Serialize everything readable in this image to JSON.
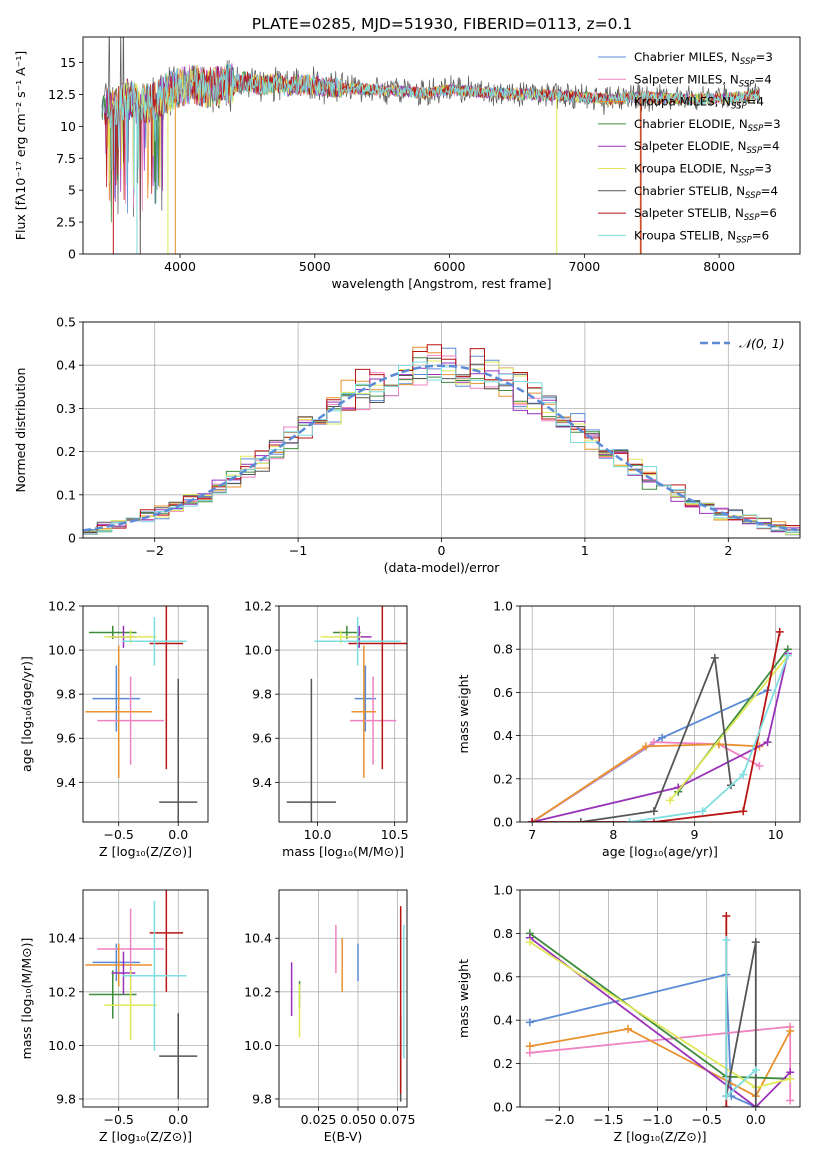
{
  "figure_title": "PLATE=0285, MJD=51930, FIBERID=0113, z=0.1",
  "chart_data": [
    {
      "id": "spectrum",
      "type": "line",
      "xlabel": "wavelength [Angstrom, rest frame]",
      "ylabel": "Flux [fλ10⁻¹⁷ erg cm⁻² s⁻¹ A⁻¹]",
      "xlim": [
        3280,
        8600
      ],
      "ylim": [
        0,
        17
      ],
      "xticks": [
        4000,
        5000,
        6000,
        7000,
        8000
      ],
      "yticks": [
        0.0,
        2.5,
        5.0,
        7.5,
        10.0,
        12.5,
        15.0
      ],
      "legend_loc": "right",
      "series": [
        {
          "name": "Chabrier MILES, N",
          "sub": "SSP",
          "suffix": "=3",
          "color": "#5b8bd6"
        },
        {
          "name": "Salpeter MILES, N",
          "sub": "SSP",
          "suffix": "=4",
          "color": "#f082c2"
        },
        {
          "name": "Kroupa MILES, N",
          "sub": "SSP",
          "suffix": "=4",
          "color": "#e8912e"
        },
        {
          "name": "Chabrier ELODIE, N",
          "sub": "SSP",
          "suffix": "=3",
          "color": "#3d8c3d"
        },
        {
          "name": "Salpeter ELODIE, N",
          "sub": "SSP",
          "suffix": "=4",
          "color": "#9932b8"
        },
        {
          "name": "Kroupa ELODIE, N",
          "sub": "SSP",
          "suffix": "=3",
          "color": "#e0e85a"
        },
        {
          "name": "Chabrier STELIB, N",
          "sub": "SSP",
          "suffix": "=4",
          "color": "#555555"
        },
        {
          "name": "Salpeter STELIB, N",
          "sub": "SSP",
          "suffix": "=6",
          "color": "#b81414"
        },
        {
          "name": "Kroupa STELIB, N",
          "sub": "SSP",
          "suffix": "=6",
          "color": "#7fdde0"
        }
      ],
      "profile_x": [
        3400,
        3500,
        3600,
        3700,
        3800,
        3900,
        4000,
        4100,
        4200,
        4300,
        4400,
        4500,
        4600,
        4700,
        4800,
        4900,
        5000,
        5200,
        5400,
        5600,
        5800,
        6000,
        6200,
        6400,
        6600,
        6800,
        7000,
        7200,
        7400,
        7600,
        7800,
        8000,
        8200,
        8300
      ],
      "profile_y": [
        11.8,
        11.3,
        12.2,
        11.6,
        11.9,
        12.6,
        13.1,
        13.3,
        13.0,
        13.2,
        13.4,
        13.5,
        13.2,
        13.4,
        13.1,
        13.3,
        13.2,
        13.0,
        12.9,
        12.8,
        12.6,
        12.9,
        12.7,
        12.6,
        12.5,
        12.4,
        12.3,
        12.1,
        12.3,
        12.2,
        12.1,
        12.2,
        12.3,
        12.5
      ]
    },
    {
      "id": "residual_histogram",
      "type": "line",
      "xlabel": "(data-model)/error",
      "ylabel": "Normed distribution",
      "xlim": [
        -2.5,
        2.5
      ],
      "ylim": [
        0,
        0.5
      ],
      "xticks": [
        -2,
        -1,
        0,
        1,
        2
      ],
      "yticks": [
        0.0,
        0.1,
        0.2,
        0.3,
        0.4,
        0.5
      ],
      "legend": "𝒩(0, 1)",
      "legend_loc": "top-right",
      "gaussian": {
        "mean": 0,
        "sigma": 1,
        "color": "#5b8bd6"
      },
      "bin_width": 0.1
    },
    {
      "id": "age_vs_Z",
      "type": "scatter",
      "xlabel": "Z [log₁₀(Z/Z⊙)]",
      "ylabel": "age  [log₁₀(age/yr)]",
      "xlim": [
        -0.8,
        0.25
      ],
      "ylim": [
        9.22,
        10.2
      ],
      "xticks": [
        "-0.5",
        "0.0"
      ],
      "yticks": [
        "9.4",
        "9.6",
        "9.8",
        "10.0",
        "10.2"
      ],
      "points": [
        {
          "x": -0.52,
          "y": 9.78,
          "xerr": 0.2,
          "yerr": 0.15,
          "color": "#5b8bd6"
        },
        {
          "x": -0.4,
          "y": 9.68,
          "xerr": 0.28,
          "yerr": 0.2,
          "color": "#f082c2"
        },
        {
          "x": -0.5,
          "y": 9.72,
          "xerr": 0.28,
          "yerr": 0.3,
          "color": "#e8912e"
        },
        {
          "x": -0.55,
          "y": 10.08,
          "xerr": 0.2,
          "yerr": 0.03,
          "color": "#3d8c3d"
        },
        {
          "x": -0.46,
          "y": 10.06,
          "xerr": 0.1,
          "yerr": 0.05,
          "color": "#9932b8"
        },
        {
          "x": -0.4,
          "y": 10.06,
          "xerr": 0.22,
          "yerr": 0.03,
          "color": "#e0e85a"
        },
        {
          "x": 0.0,
          "y": 9.31,
          "xerr": 0.16,
          "yerr": 0.56,
          "color": "#555555"
        },
        {
          "x": -0.1,
          "y": 10.03,
          "xerr": 0.14,
          "yerr": 0.57,
          "color": "#b81414"
        },
        {
          "x": -0.2,
          "y": 10.04,
          "xerr": 0.27,
          "yerr": 0.11,
          "color": "#7fdde0"
        }
      ]
    },
    {
      "id": "age_vs_mass",
      "type": "scatter",
      "xlabel": "mass [log₁₀(M/M⊙)]",
      "ylabel": "",
      "xlim": [
        9.75,
        10.58
      ],
      "ylim": [
        9.22,
        10.2
      ],
      "xticks": [
        "10.0",
        "10.5"
      ],
      "yticks": [
        "9.4",
        "9.6",
        "9.8",
        "10.0",
        "10.2"
      ],
      "points": [
        {
          "x": 10.31,
          "y": 9.78,
          "xerr": 0.07,
          "yerr": 0.15,
          "color": "#5b8bd6"
        },
        {
          "x": 10.36,
          "y": 9.68,
          "xerr": 0.15,
          "yerr": 0.2,
          "color": "#f082c2"
        },
        {
          "x": 10.3,
          "y": 9.72,
          "xerr": 0.08,
          "yerr": 0.3,
          "color": "#e8912e"
        },
        {
          "x": 10.19,
          "y": 10.08,
          "xerr": 0.09,
          "yerr": 0.03,
          "color": "#3d8c3d"
        },
        {
          "x": 10.27,
          "y": 10.06,
          "xerr": 0.08,
          "yerr": 0.05,
          "color": "#9932b8"
        },
        {
          "x": 10.15,
          "y": 10.06,
          "xerr": 0.13,
          "yerr": 0.03,
          "color": "#e0e85a"
        },
        {
          "x": 9.96,
          "y": 9.31,
          "xerr": 0.16,
          "yerr": 0.56,
          "color": "#555555"
        },
        {
          "x": 10.42,
          "y": 10.03,
          "xerr": 0.22,
          "yerr": 0.57,
          "color": "#b81414"
        },
        {
          "x": 10.26,
          "y": 10.04,
          "xerr": 0.28,
          "yerr": 0.11,
          "color": "#7fdde0"
        }
      ]
    },
    {
      "id": "weight_vs_age",
      "type": "line",
      "xlabel": "age  [log₁₀(age/yr)]",
      "ylabel": "mass weight",
      "xlim": [
        6.85,
        10.3
      ],
      "ylim": [
        0,
        1.0
      ],
      "xticks": [
        "7",
        "8",
        "9",
        "10"
      ],
      "yticks": [
        "0.0",
        "0.2",
        "0.4",
        "0.6",
        "0.8",
        "1.0"
      ],
      "series": [
        {
          "color": "#5b8bd6",
          "x": [
            7.0,
            8.6,
            9.9
          ],
          "y": [
            0.0,
            0.39,
            0.61
          ]
        },
        {
          "color": "#f082c2",
          "x": [
            7.0,
            8.5,
            9.3,
            9.8
          ],
          "y": [
            0.0,
            0.37,
            0.36,
            0.26
          ]
        },
        {
          "color": "#e8912e",
          "x": [
            7.0,
            8.4,
            9.3,
            9.8
          ],
          "y": [
            0.0,
            0.35,
            0.36,
            0.35
          ]
        },
        {
          "color": "#3d8c3d",
          "x": [
            8.8,
            10.15
          ],
          "y": [
            0.14,
            0.8
          ]
        },
        {
          "color": "#9932b8",
          "x": [
            7.0,
            8.8,
            9.9,
            10.15
          ],
          "y": [
            0.0,
            0.16,
            0.37,
            0.78
          ]
        },
        {
          "color": "#e0e85a",
          "x": [
            8.7,
            10.15
          ],
          "y": [
            0.1,
            0.77
          ]
        },
        {
          "color": "#555555",
          "x": [
            7.6,
            8.5,
            9.25,
            9.45
          ],
          "y": [
            0.0,
            0.05,
            0.76,
            0.17
          ]
        },
        {
          "color": "#b81414",
          "x": [
            7.0,
            8.5,
            9.6,
            10.05
          ],
          "y": [
            0.0,
            0.0,
            0.05,
            0.88
          ]
        },
        {
          "color": "#7fdde0",
          "x": [
            8.2,
            9.1,
            9.6,
            10.15
          ],
          "y": [
            0.0,
            0.05,
            0.22,
            0.77
          ]
        }
      ]
    },
    {
      "id": "mass_vs_Z",
      "type": "scatter",
      "xlabel": "Z [log₁₀(Z/Z⊙)]",
      "ylabel": "mass [log₁₀(M/M⊙)]",
      "xlim": [
        -0.8,
        0.25
      ],
      "ylim": [
        9.77,
        10.58
      ],
      "xticks": [
        "-0.5",
        "0.0"
      ],
      "yticks": [
        "9.8",
        "10.0",
        "10.2",
        "10.4"
      ],
      "points": [
        {
          "x": -0.52,
          "y": 10.31,
          "xerr": 0.2,
          "yerr": 0.07,
          "color": "#5b8bd6"
        },
        {
          "x": -0.4,
          "y": 10.36,
          "xerr": 0.28,
          "yerr": 0.15,
          "color": "#f082c2"
        },
        {
          "x": -0.5,
          "y": 10.3,
          "xerr": 0.28,
          "yerr": 0.08,
          "color": "#e8912e"
        },
        {
          "x": -0.55,
          "y": 10.19,
          "xerr": 0.2,
          "yerr": 0.09,
          "color": "#3d8c3d"
        },
        {
          "x": -0.46,
          "y": 10.27,
          "xerr": 0.1,
          "yerr": 0.08,
          "color": "#9932b8"
        },
        {
          "x": -0.4,
          "y": 10.15,
          "xerr": 0.22,
          "yerr": 0.13,
          "color": "#e0e85a"
        },
        {
          "x": 0.0,
          "y": 9.96,
          "xerr": 0.16,
          "yerr": 0.16,
          "color": "#555555"
        },
        {
          "x": -0.1,
          "y": 10.42,
          "xerr": 0.14,
          "yerr": 0.22,
          "color": "#b81414"
        },
        {
          "x": -0.2,
          "y": 10.26,
          "xerr": 0.27,
          "yerr": 0.28,
          "color": "#7fdde0"
        }
      ]
    },
    {
      "id": "mass_vs_ebv",
      "type": "scatter",
      "xlabel": "E(B-V)",
      "ylabel": "",
      "xlim": [
        0.0,
        0.081
      ],
      "ylim": [
        9.77,
        10.58
      ],
      "xticks": [
        "0.025",
        "0.050",
        "0.075"
      ],
      "yticks": [
        "9.8",
        "10.0",
        "10.2",
        "10.4"
      ],
      "points": [
        {
          "x": 0.05,
          "y": 10.31,
          "yerr": 0.07,
          "color": "#5b8bd6"
        },
        {
          "x": 0.036,
          "y": 10.36,
          "yerr": 0.09,
          "color": "#f082c2"
        },
        {
          "x": 0.04,
          "y": 10.3,
          "yerr": 0.1,
          "color": "#e8912e"
        },
        {
          "x": 0.013,
          "y": 10.19,
          "yerr": 0.05,
          "color": "#3d8c3d"
        },
        {
          "x": 0.008,
          "y": 10.21,
          "yerr": 0.1,
          "color": "#9932b8"
        },
        {
          "x": 0.013,
          "y": 10.13,
          "yerr": 0.1,
          "color": "#e0e85a"
        },
        {
          "x": 0.077,
          "y": 9.95,
          "yerr": 0.16,
          "color": "#555555"
        },
        {
          "x": 0.077,
          "y": 10.17,
          "yerr": 0.35,
          "color": "#b81414"
        },
        {
          "x": 0.079,
          "y": 10.2,
          "yerr": 0.25,
          "color": "#7fdde0"
        }
      ]
    },
    {
      "id": "weight_vs_Z",
      "type": "line",
      "xlabel": "Z [log₁₀(Z/Z⊙)]",
      "ylabel": "mass weight",
      "xlim": [
        -2.4,
        0.45
      ],
      "ylim": [
        0,
        1.0
      ],
      "xticks": [
        "−2.0",
        "−1.5",
        "−1.0",
        "−0.5",
        "0.0"
      ],
      "yticks": [
        "0.0",
        "0.2",
        "0.4",
        "0.6",
        "0.8",
        "1.0"
      ],
      "series": [
        {
          "color": "#5b8bd6",
          "x": [
            -2.3,
            -0.3,
            -0.25,
            0.0
          ],
          "y": [
            0.39,
            0.61,
            0.05,
            0.0
          ]
        },
        {
          "color": "#f082c2",
          "x": [
            -2.3,
            0.35,
            0.35
          ],
          "y": [
            0.25,
            0.37,
            0.03
          ]
        },
        {
          "color": "#e8912e",
          "x": [
            -2.3,
            -1.3,
            0.0,
            0.35
          ],
          "y": [
            0.28,
            0.36,
            0.05,
            0.35
          ]
        },
        {
          "color": "#3d8c3d",
          "x": [
            -2.3,
            -0.3,
            0.35
          ],
          "y": [
            0.8,
            0.14,
            0.13
          ]
        },
        {
          "color": "#9932b8",
          "x": [
            -2.3,
            0.0,
            0.35
          ],
          "y": [
            0.78,
            0.0,
            0.16
          ]
        },
        {
          "color": "#e0e85a",
          "x": [
            -2.3,
            0.0,
            0.35
          ],
          "y": [
            0.76,
            0.09,
            0.13
          ]
        },
        {
          "color": "#555555",
          "x": [
            -0.3,
            0.0,
            0.0
          ],
          "y": [
            0.05,
            0.76,
            0.0
          ]
        },
        {
          "color": "#b81414",
          "x": [
            -0.3,
            -0.3
          ],
          "y": [
            0.88,
            0.0
          ]
        },
        {
          "color": "#7fdde0",
          "x": [
            -0.3,
            -0.3,
            0.0
          ],
          "y": [
            0.77,
            0.05,
            0.17
          ]
        }
      ]
    }
  ]
}
